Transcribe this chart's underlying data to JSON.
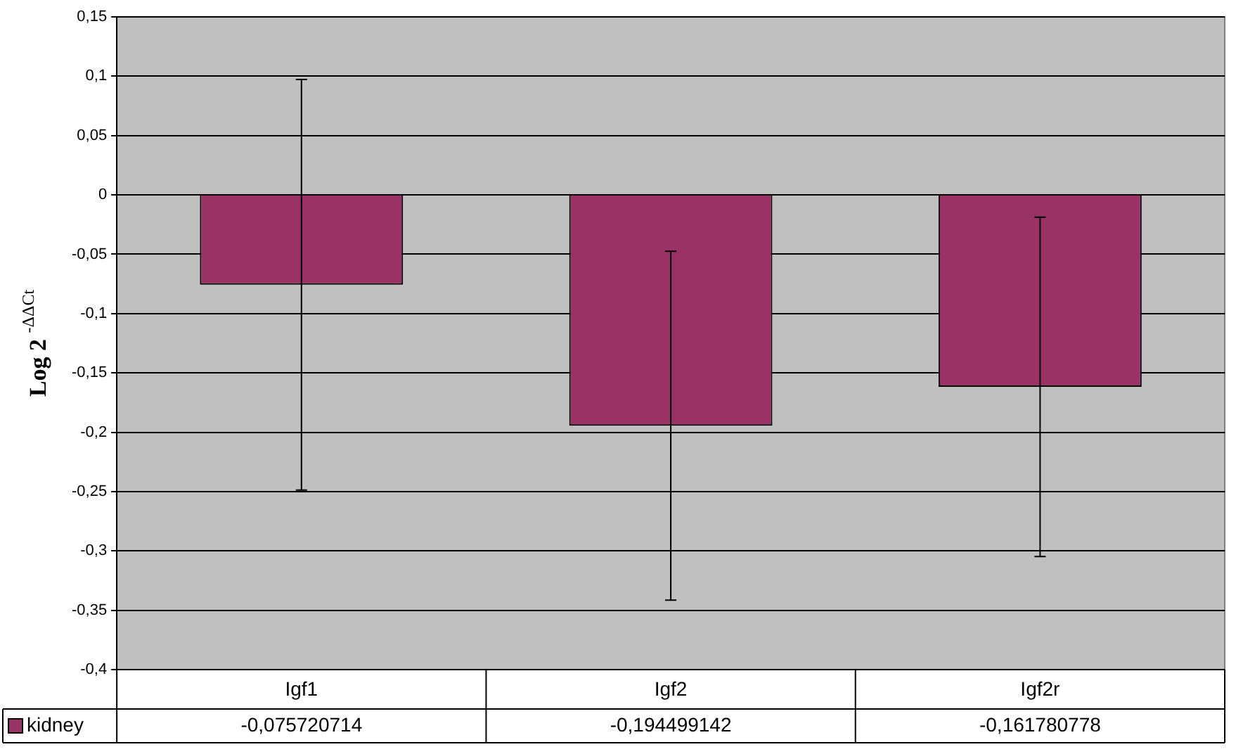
{
  "chart_data": {
    "type": "bar",
    "ylabel": "Log 2 $^{-ΔΔCt}$",
    "categories": [
      "Igf1",
      "Igf2",
      "Igf2r"
    ],
    "series": [
      {
        "name": "kidney",
        "color": "#993366",
        "values": [
          -0.075720714,
          -0.194499142,
          -0.161780778
        ],
        "errors": [
          0.173,
          0.147,
          0.143
        ],
        "value_labels": [
          "-0,075720714",
          "-0,194499142",
          "-0,161780778"
        ]
      }
    ],
    "ylim": [
      -0.4,
      0.15
    ],
    "yticks": [
      {
        "value": -0.4,
        "label": "-0,4"
      },
      {
        "value": -0.35,
        "label": "-0,35"
      },
      {
        "value": -0.3,
        "label": "-0,3"
      },
      {
        "value": -0.25,
        "label": "-0,25"
      },
      {
        "value": -0.2,
        "label": "-0,2"
      },
      {
        "value": -0.15,
        "label": "-0,15"
      },
      {
        "value": -0.1,
        "label": "-0,1"
      },
      {
        "value": -0.05,
        "label": "-0,05"
      },
      {
        "value": 0,
        "label": "0"
      },
      {
        "value": 0.05,
        "label": "0,05"
      },
      {
        "value": 0.1,
        "label": "0,1"
      },
      {
        "value": 0.15,
        "label": "0,15"
      }
    ],
    "grid": "y",
    "legend": "bottom left"
  }
}
